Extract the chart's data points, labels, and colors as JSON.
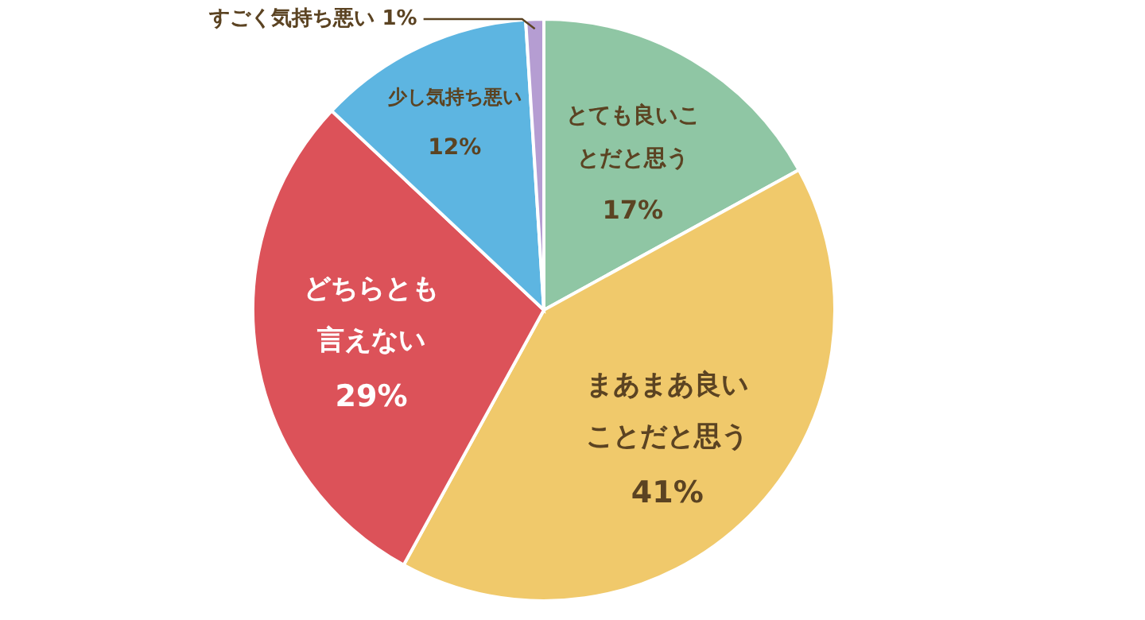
{
  "chart_data": {
    "type": "pie",
    "categories": [
      "とても良いことだと思う",
      "まあまあ良いことだと思う",
      "どちらとも言えない",
      "少し気持ち悪い",
      "すごく気持ち悪い"
    ],
    "values": [
      17,
      41,
      29,
      12,
      1
    ],
    "value_labels": [
      "17%",
      "41%",
      "29%",
      "12%",
      "1%"
    ],
    "colors": [
      "#8fc6a4",
      "#f0c96b",
      "#dc5259",
      "#5db5e1",
      "#b59dd2"
    ]
  }
}
